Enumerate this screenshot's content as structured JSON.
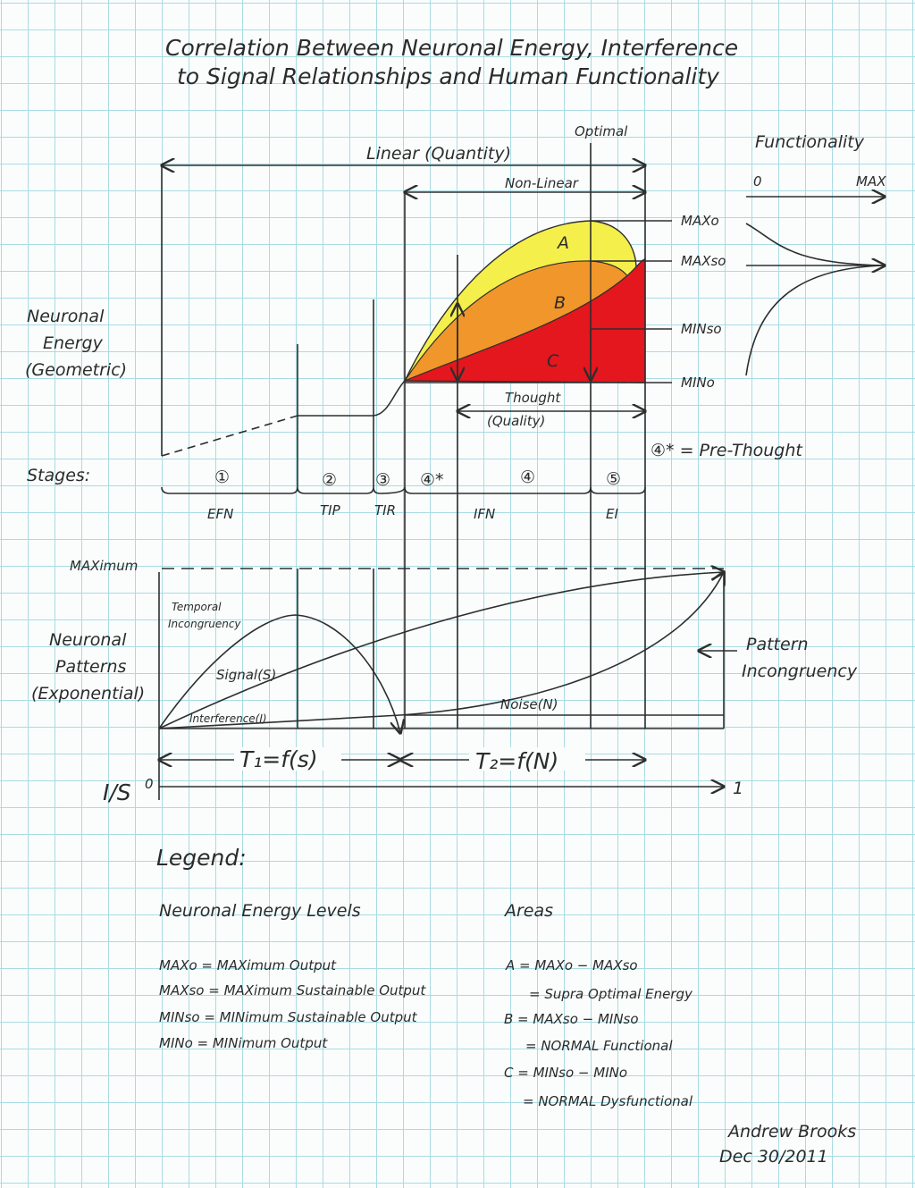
{
  "title": {
    "line1": "Correlation Between Neuronal Energy, Interference",
    "line2": "to Signal Relationships and Human Functionality"
  },
  "top_chart": {
    "linear_label": "Linear (Quantity)",
    "optimal_label": "Optimal",
    "nonlinear_label": "Non-Linear",
    "y_label": [
      "Neuronal",
      "Energy",
      "(Geometric)"
    ],
    "levels": [
      "MAXo",
      "MAXso",
      "MINso",
      "MINo"
    ],
    "areas": [
      "A",
      "B",
      "C"
    ],
    "thought_label": [
      "Thought",
      "(Quality)"
    ],
    "prethought_note": "④* = Pre-Thought",
    "area_colors": {
      "A": "#f4ef4a",
      "B": "#f0962a",
      "C": "#e4161e"
    }
  },
  "functionality": {
    "title": "Functionality",
    "min_label": "0",
    "max_label": "MAX"
  },
  "stages": {
    "label": "Stages:",
    "numbers": [
      "①",
      "②",
      "③",
      "④*",
      "④",
      "⑤"
    ],
    "names": [
      "EFN",
      "TIP",
      "TIR",
      "IFN",
      "EI"
    ]
  },
  "bottom_chart": {
    "maximum_label": "MAXimum",
    "y_label": [
      "Neuronal",
      "Patterns",
      "(Exponential)"
    ],
    "temporal_label": [
      "Temporal",
      "Incongruency"
    ],
    "signal_label": "Signal(S)",
    "interference_label": "Interference(I)",
    "noise_label": "Noise(N)",
    "pattern_label": [
      "Pattern",
      "Incongruency"
    ],
    "t1_label": "T₁=f(s)",
    "t2_label": "T₂=f(N)",
    "ratio_label": "I/S",
    "ratio_min": "0",
    "ratio_max": "1"
  },
  "legend": {
    "heading": "Legend:",
    "energy_heading": "Neuronal Energy Levels",
    "energy_items": [
      "MAXo = MAXimum Output",
      "MAXso = MAXimum Sustainable Output",
      "MINso = MINimum Sustainable Output",
      "MINo = MINimum Output"
    ],
    "areas_heading": "Areas",
    "area_items": [
      "A = MAXo − MAXso",
      "= Supra Optimal Energy",
      "B = MAXso − MINso",
      "= NORMAL Functional",
      "C = MINso − MINo",
      "= NORMAL Dysfunctional"
    ]
  },
  "signature": {
    "name": "Andrew Brooks",
    "date": "Dec 30/2011"
  }
}
